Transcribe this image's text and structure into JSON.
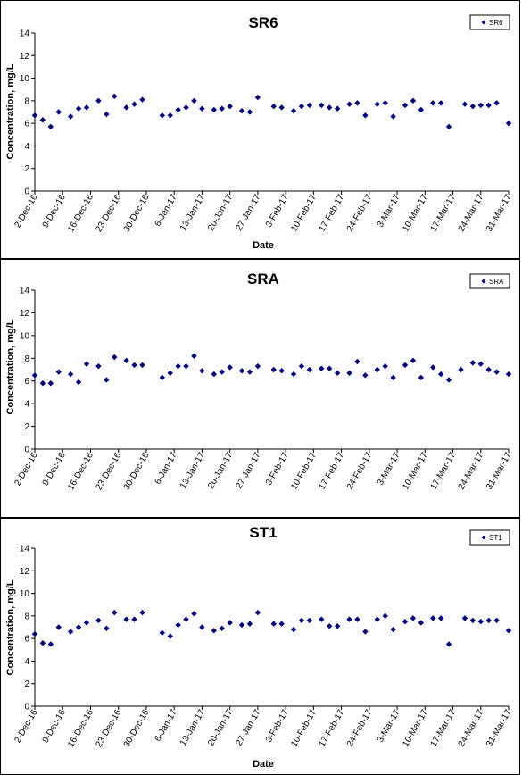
{
  "colors": {
    "marker": "#00007F",
    "axis": "#000000",
    "frame": "#000000"
  },
  "chart_data": [
    {
      "type": "scatter",
      "title": "SR6",
      "xlabel": "Date",
      "ylabel": "Concentration, mg/L",
      "ylim": [
        0,
        14
      ],
      "yticks": [
        "0",
        "2",
        "4",
        "6",
        "8",
        "10",
        "12",
        "14"
      ],
      "xlim": [
        "2016-12-02",
        "2017-03-31"
      ],
      "xticks": [
        {
          "date": "2016-12-02",
          "label": "2-Dec-16"
        },
        {
          "date": "2016-12-09",
          "label": "9-Dec-16"
        },
        {
          "date": "2016-12-16",
          "label": "16-Dec-16"
        },
        {
          "date": "2016-12-23",
          "label": "23-Dec-16"
        },
        {
          "date": "2016-12-30",
          "label": "30-Dec-16"
        },
        {
          "date": "2017-01-06",
          "label": "6-Jan-17"
        },
        {
          "date": "2017-01-13",
          "label": "13-Jan-17"
        },
        {
          "date": "2017-01-20",
          "label": "20-Jan-17"
        },
        {
          "date": "2017-01-27",
          "label": "27-Jan-17"
        },
        {
          "date": "2017-02-03",
          "label": "3-Feb-17"
        },
        {
          "date": "2017-02-10",
          "label": "10-Feb-17"
        },
        {
          "date": "2017-02-17",
          "label": "17-Feb-17"
        },
        {
          "date": "2017-02-24",
          "label": "24-Feb-17"
        },
        {
          "date": "2017-03-03",
          "label": "3-Mar-17"
        },
        {
          "date": "2017-03-10",
          "label": "10-Mar-17"
        },
        {
          "date": "2017-03-17",
          "label": "17-Mar-17"
        },
        {
          "date": "2017-03-24",
          "label": "24-Mar-17"
        },
        {
          "date": "2017-03-31",
          "label": "31-Mar-17"
        }
      ],
      "grid": false,
      "legend_position": "top-right",
      "series": [
        {
          "name": "SR6",
          "x": [
            "2016-12-02",
            "2016-12-04",
            "2016-12-06",
            "2016-12-08",
            "2016-12-11",
            "2016-12-13",
            "2016-12-15",
            "2016-12-18",
            "2016-12-20",
            "2016-12-22",
            "2016-12-25",
            "2016-12-27",
            "2016-12-29",
            "2017-01-03",
            "2017-01-05",
            "2017-01-07",
            "2017-01-09",
            "2017-01-11",
            "2017-01-13",
            "2017-01-16",
            "2017-01-18",
            "2017-01-20",
            "2017-01-23",
            "2017-01-25",
            "2017-01-27",
            "2017-01-31",
            "2017-02-02",
            "2017-02-05",
            "2017-02-07",
            "2017-02-09",
            "2017-02-12",
            "2017-02-14",
            "2017-02-16",
            "2017-02-19",
            "2017-02-21",
            "2017-02-23",
            "2017-02-26",
            "2017-02-28",
            "2017-03-02",
            "2017-03-05",
            "2017-03-07",
            "2017-03-09",
            "2017-03-12",
            "2017-03-14",
            "2017-03-16",
            "2017-03-20",
            "2017-03-22",
            "2017-03-24",
            "2017-03-26",
            "2017-03-28",
            "2017-03-31"
          ],
          "y": [
            6.7,
            6.3,
            5.7,
            7.0,
            6.6,
            7.3,
            7.4,
            8.0,
            6.8,
            8.4,
            7.4,
            7.7,
            8.1,
            6.7,
            6.7,
            7.2,
            7.4,
            8.0,
            7.3,
            7.2,
            7.3,
            7.5,
            7.1,
            7.0,
            8.3,
            7.5,
            7.4,
            7.1,
            7.5,
            7.6,
            7.6,
            7.4,
            7.3,
            7.7,
            7.8,
            6.7,
            7.7,
            7.8,
            6.6,
            7.6,
            8.0,
            7.2,
            7.8,
            7.8,
            5.7,
            7.7,
            7.5,
            7.6,
            7.6,
            7.8,
            6.0
          ]
        }
      ]
    },
    {
      "type": "scatter",
      "title": "SRA",
      "xlabel": "",
      "ylabel": "Concentration, mg/L",
      "ylim": [
        0,
        14
      ],
      "yticks": [
        "0",
        "2",
        "4",
        "6",
        "8",
        "10",
        "12",
        "14"
      ],
      "xlim": [
        "2016-12-02",
        "2017-03-31"
      ],
      "xticks": [
        {
          "date": "2016-12-02",
          "label": "2-Dec-16"
        },
        {
          "date": "2016-12-09",
          "label": "9-Dec-16"
        },
        {
          "date": "2016-12-16",
          "label": "16-Dec-16"
        },
        {
          "date": "2016-12-23",
          "label": "23-Dec-16"
        },
        {
          "date": "2016-12-30",
          "label": "30-Dec-16"
        },
        {
          "date": "2017-01-06",
          "label": "6-Jan-17"
        },
        {
          "date": "2017-01-13",
          "label": "13-Jan-17"
        },
        {
          "date": "2017-01-20",
          "label": "20-Jan-17"
        },
        {
          "date": "2017-01-27",
          "label": "27-Jan-17"
        },
        {
          "date": "2017-02-03",
          "label": "3-Feb-17"
        },
        {
          "date": "2017-02-10",
          "label": "10-Feb-17"
        },
        {
          "date": "2017-02-17",
          "label": "17-Feb-17"
        },
        {
          "date": "2017-02-24",
          "label": "24-Feb-17"
        },
        {
          "date": "2017-03-03",
          "label": "3-Mar-17"
        },
        {
          "date": "2017-03-10",
          "label": "10-Mar-17"
        },
        {
          "date": "2017-03-17",
          "label": "17-Mar-17"
        },
        {
          "date": "2017-03-24",
          "label": "24-Mar-17"
        },
        {
          "date": "2017-03-31",
          "label": "31-Mar-17"
        }
      ],
      "grid": false,
      "legend_position": "top-right",
      "series": [
        {
          "name": "SRA",
          "x": [
            "2016-12-02",
            "2016-12-04",
            "2016-12-06",
            "2016-12-08",
            "2016-12-11",
            "2016-12-13",
            "2016-12-15",
            "2016-12-18",
            "2016-12-20",
            "2016-12-22",
            "2016-12-25",
            "2016-12-27",
            "2016-12-29",
            "2017-01-03",
            "2017-01-05",
            "2017-01-07",
            "2017-01-09",
            "2017-01-11",
            "2017-01-13",
            "2017-01-16",
            "2017-01-18",
            "2017-01-20",
            "2017-01-23",
            "2017-01-25",
            "2017-01-27",
            "2017-01-31",
            "2017-02-02",
            "2017-02-05",
            "2017-02-07",
            "2017-02-09",
            "2017-02-12",
            "2017-02-14",
            "2017-02-16",
            "2017-02-19",
            "2017-02-21",
            "2017-02-23",
            "2017-02-26",
            "2017-02-28",
            "2017-03-02",
            "2017-03-05",
            "2017-03-07",
            "2017-03-09",
            "2017-03-12",
            "2017-03-14",
            "2017-03-16",
            "2017-03-19",
            "2017-03-22",
            "2017-03-24",
            "2017-03-26",
            "2017-03-28",
            "2017-03-31"
          ],
          "y": [
            6.5,
            5.8,
            5.8,
            6.8,
            6.6,
            5.9,
            7.5,
            7.3,
            6.1,
            8.1,
            7.8,
            7.4,
            7.4,
            6.3,
            6.7,
            7.3,
            7.3,
            8.2,
            6.9,
            6.6,
            6.8,
            7.2,
            6.9,
            6.8,
            7.3,
            7.0,
            6.9,
            6.6,
            7.3,
            7.0,
            7.1,
            7.1,
            6.7,
            6.7,
            7.7,
            6.5,
            7.0,
            7.3,
            6.3,
            7.4,
            7.8,
            6.3,
            7.2,
            6.6,
            6.1,
            7.0,
            7.6,
            7.5,
            7.0,
            6.8,
            6.6
          ]
        }
      ]
    },
    {
      "type": "scatter",
      "title": "ST1",
      "xlabel": "Date",
      "ylabel": "Concentration, mg/L",
      "ylim": [
        0,
        14
      ],
      "yticks": [
        "0",
        "2",
        "4",
        "6",
        "8",
        "10",
        "12",
        "14"
      ],
      "xlim": [
        "2016-12-02",
        "2017-03-31"
      ],
      "xticks": [
        {
          "date": "2016-12-02",
          "label": "2-Dec-16"
        },
        {
          "date": "2016-12-09",
          "label": "9-Dec-16"
        },
        {
          "date": "2016-12-16",
          "label": "16-Dec-16"
        },
        {
          "date": "2016-12-23",
          "label": "23-Dec-16"
        },
        {
          "date": "2016-12-30",
          "label": "30-Dec-16"
        },
        {
          "date": "2017-01-06",
          "label": "6-Jan-17"
        },
        {
          "date": "2017-01-13",
          "label": "13-Jan-17"
        },
        {
          "date": "2017-01-20",
          "label": "20-Jan-17"
        },
        {
          "date": "2017-01-27",
          "label": "27-Jan-17"
        },
        {
          "date": "2017-02-03",
          "label": "3-Feb-17"
        },
        {
          "date": "2017-02-10",
          "label": "10-Feb-17"
        },
        {
          "date": "2017-02-17",
          "label": "17-Feb-17"
        },
        {
          "date": "2017-02-24",
          "label": "24-Feb-17"
        },
        {
          "date": "2017-03-03",
          "label": "3-Mar-17"
        },
        {
          "date": "2017-03-10",
          "label": "10-Mar-17"
        },
        {
          "date": "2017-03-17",
          "label": "17-Mar-17"
        },
        {
          "date": "2017-03-24",
          "label": "24-Mar-17"
        },
        {
          "date": "2017-03-31",
          "label": "31-Mar-17"
        }
      ],
      "grid": false,
      "legend_position": "top-right",
      "series": [
        {
          "name": "ST1",
          "x": [
            "2016-12-02",
            "2016-12-04",
            "2016-12-06",
            "2016-12-08",
            "2016-12-11",
            "2016-12-13",
            "2016-12-15",
            "2016-12-18",
            "2016-12-20",
            "2016-12-22",
            "2016-12-25",
            "2016-12-27",
            "2016-12-29",
            "2017-01-03",
            "2017-01-05",
            "2017-01-07",
            "2017-01-09",
            "2017-01-11",
            "2017-01-13",
            "2017-01-16",
            "2017-01-18",
            "2017-01-20",
            "2017-01-23",
            "2017-01-25",
            "2017-01-27",
            "2017-01-31",
            "2017-02-02",
            "2017-02-05",
            "2017-02-07",
            "2017-02-09",
            "2017-02-12",
            "2017-02-14",
            "2017-02-16",
            "2017-02-19",
            "2017-02-21",
            "2017-02-23",
            "2017-02-26",
            "2017-02-28",
            "2017-03-02",
            "2017-03-05",
            "2017-03-07",
            "2017-03-09",
            "2017-03-12",
            "2017-03-14",
            "2017-03-16",
            "2017-03-20",
            "2017-03-22",
            "2017-03-24",
            "2017-03-26",
            "2017-03-28",
            "2017-03-31"
          ],
          "y": [
            6.4,
            5.6,
            5.5,
            7.0,
            6.6,
            7.0,
            7.4,
            7.6,
            6.9,
            8.3,
            7.7,
            7.7,
            8.3,
            6.5,
            6.2,
            7.2,
            7.7,
            8.2,
            7.0,
            6.7,
            6.9,
            7.4,
            7.2,
            7.3,
            8.3,
            7.3,
            7.3,
            6.8,
            7.6,
            7.6,
            7.7,
            7.1,
            7.1,
            7.7,
            7.7,
            6.6,
            7.7,
            8.0,
            6.8,
            7.5,
            7.8,
            7.4,
            7.8,
            7.8,
            5.5,
            7.8,
            7.6,
            7.5,
            7.6,
            7.6,
            6.7
          ]
        }
      ]
    }
  ]
}
